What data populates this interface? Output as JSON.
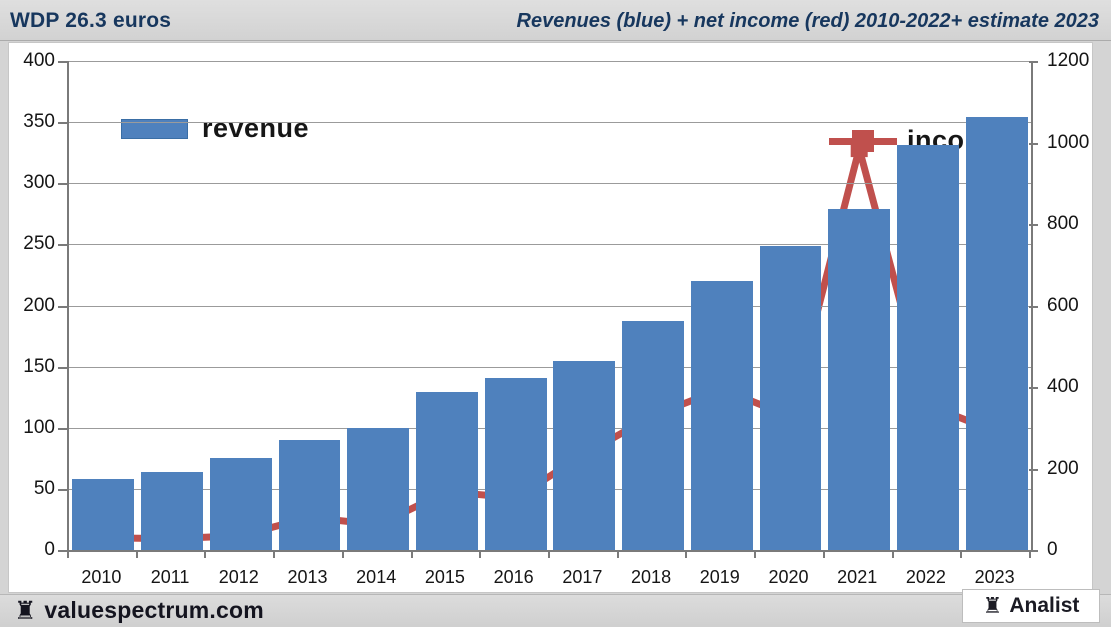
{
  "header": {
    "left_title": "WDP 26.3 euros",
    "right_title": "Revenues (blue) + net income (red) 2010-2022+ estimate 2023"
  },
  "legend": {
    "revenue_label": "revenue",
    "income_label": "income"
  },
  "footer": {
    "brand": "valuespectrum.com",
    "badge": "Analist",
    "rook_icon": "♜"
  },
  "colors": {
    "bar_blue": "#4f81bd",
    "line_red": "#c0504d",
    "title_navy": "#17375e",
    "gridline_gray": "#9b9b9b",
    "axis_gray": "#7a7a7a"
  },
  "chart_data": {
    "type": "bar",
    "combo": "bar+line",
    "title": "Revenues (blue) + net income (red) 2010-2022+ estimate 2023",
    "categories": [
      "2010",
      "2011",
      "2012",
      "2013",
      "2014",
      "2015",
      "2016",
      "2017",
      "2018",
      "2019",
      "2020",
      "2021",
      "2022",
      "2023"
    ],
    "series": [
      {
        "name": "revenue",
        "type": "bar",
        "axis": "left",
        "color": "#4f81bd",
        "values": [
          58,
          64,
          75,
          90,
          100,
          129,
          141,
          155,
          187,
          220,
          249,
          279,
          331,
          354
        ]
      },
      {
        "name": "income",
        "type": "line",
        "axis": "right",
        "color": "#c0504d",
        "marker": "square",
        "values": [
          30,
          28,
          35,
          80,
          62,
          143,
          128,
          235,
          330,
          395,
          327,
          985,
          355,
          290
        ]
      }
    ],
    "left_axis": {
      "min": 0,
      "max": 400,
      "step": 50,
      "ticks": [
        0,
        50,
        100,
        150,
        200,
        250,
        300,
        350,
        400
      ]
    },
    "right_axis": {
      "min": 0,
      "max": 1200,
      "step": 200,
      "ticks": [
        0,
        200,
        400,
        600,
        800,
        1000,
        1200
      ]
    },
    "grid": true,
    "legend_position": "top-inside"
  }
}
